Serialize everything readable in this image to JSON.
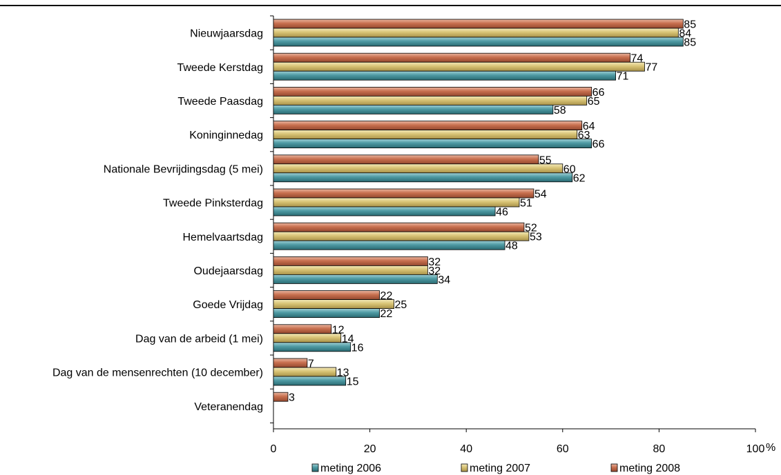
{
  "chart_data": {
    "type": "bar",
    "orientation": "horizontal",
    "categories": [
      "Nieuwjaarsdag",
      "Tweede Kerstdag",
      "Tweede Paasdag",
      "Koninginnedag",
      "Nationale Bevrijdingsdag (5 mei)",
      "Tweede Pinksterdag",
      "Hemelvaartsdag",
      "Oudejaarsdag",
      "Goede Vrijdag",
      "Dag van de arbeid (1 mei)",
      "Dag van de mensenrechten (10 december)",
      "Veteranendag"
    ],
    "series": [
      {
        "name": "meting 2006",
        "color": "#3f8c95",
        "values": [
          85,
          71,
          58,
          66,
          62,
          46,
          48,
          34,
          22,
          16,
          15,
          null
        ]
      },
      {
        "name": "meting 2007",
        "color": "#d3bd66",
        "values": [
          84,
          77,
          65,
          63,
          60,
          51,
          53,
          32,
          25,
          14,
          13,
          null
        ]
      },
      {
        "name": "meting 2008",
        "color": "#c56a4b",
        "values": [
          85,
          74,
          66,
          64,
          55,
          54,
          52,
          32,
          22,
          12,
          7,
          3
        ]
      }
    ],
    "xlim": [
      0,
      100
    ],
    "xticks": [
      "0",
      "20",
      "40",
      "60",
      "80",
      "100"
    ],
    "xunit": "%",
    "legend_position": "bottom"
  }
}
